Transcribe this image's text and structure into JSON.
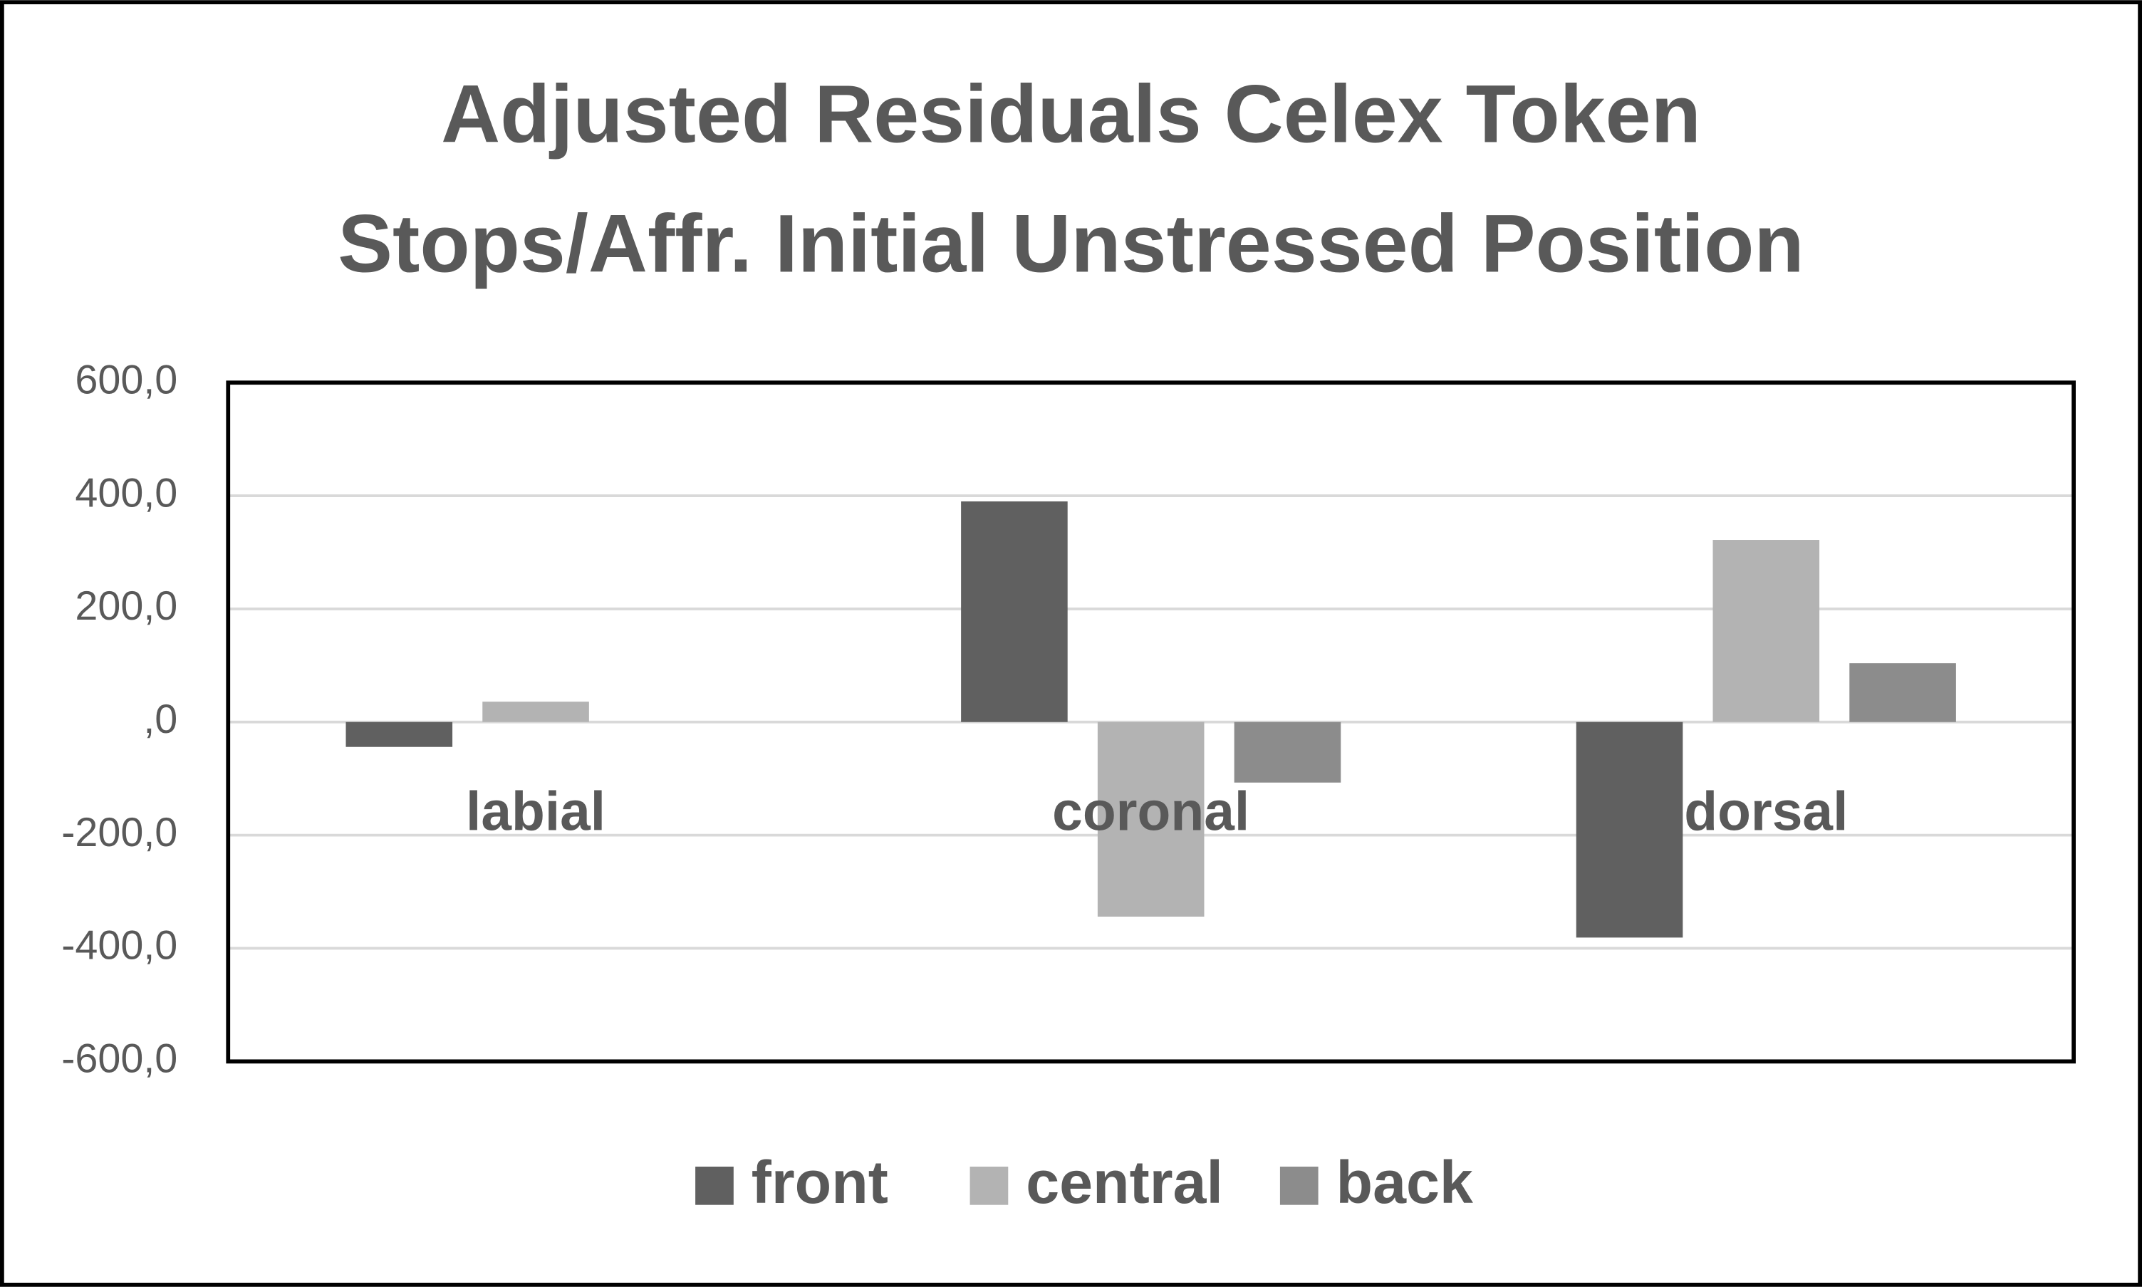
{
  "chart_data": {
    "type": "bar",
    "title": [
      "Adjusted Residuals Celex Token",
      "Stops/Affr. Initial Unstressed Position"
    ],
    "categories": [
      "labial",
      "coronal",
      "dorsal"
    ],
    "series": [
      {
        "name": "front",
        "color": "#606060",
        "values": [
          -44,
          390,
          -381
        ]
      },
      {
        "name": "central",
        "color": "#b3b3b3",
        "values": [
          36,
          -344,
          322
        ]
      },
      {
        "name": "back",
        "color": "#8c8c8c",
        "values": [
          0,
          -107,
          104
        ]
      }
    ],
    "ylim": [
      -600,
      600
    ],
    "yticks": [
      {
        "value": -600,
        "label": "-600,0"
      },
      {
        "value": -400,
        "label": "-400,0"
      },
      {
        "value": -200,
        "label": "-200,0"
      },
      {
        "value": 0,
        "label": ",0"
      },
      {
        "value": 200,
        "label": "200,0"
      },
      {
        "value": 400,
        "label": "400,0"
      },
      {
        "value": 600,
        "label": "600,0"
      }
    ],
    "grid": true,
    "legend": "bottom"
  }
}
